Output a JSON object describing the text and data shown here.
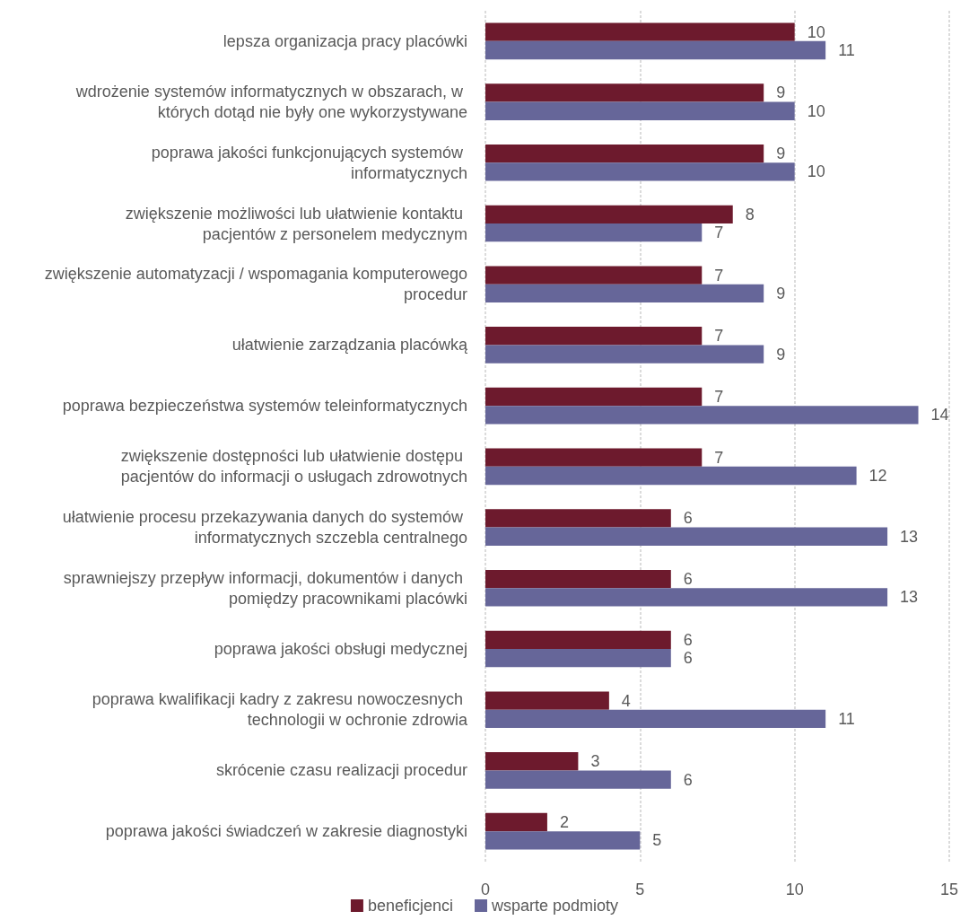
{
  "chart_data": {
    "type": "bar",
    "orientation": "horizontal",
    "categories": [
      "lepsza organizacja pracy placówki",
      "wdrożenie systemów informatycznych w obszarach, w których dotąd nie były one wykorzystywane",
      "poprawa jakości funkcjonujących systemów informatycznych",
      "zwiększenie możliwości lub ułatwienie kontaktu pacjentów z personelem medycznym",
      "zwiększenie automatyzacji / wspomagania komputerowego procedur",
      "ułatwienie zarządzania placówką",
      "poprawa bezpieczeństwa systemów teleinformatycznych",
      "zwiększenie dostępności lub ułatwienie dostępu pacjentów do informacji o usługach zdrowotnych",
      "ułatwienie procesu przekazywania danych do systemów informatycznych szczebla centralnego",
      "sprawniejszy przepływ informacji, dokumentów i danych pomiędzy pracownikami placówki",
      "poprawa jakości obsługi medycznej",
      "poprawa kwalifikacji kadry z zakresu nowoczesnych technologii w ochronie zdrowia",
      "skrócenie czasu realizacji procedur",
      "poprawa jakości świadczeń w zakresie diagnostyki"
    ],
    "series": [
      {
        "name": "beneficjenci",
        "color": "#6d1a2d",
        "values": [
          10,
          9,
          9,
          8,
          7,
          7,
          7,
          7,
          6,
          6,
          6,
          4,
          3,
          2
        ]
      },
      {
        "name": "wsparte podmioty",
        "color": "#666699",
        "values": [
          11,
          10,
          10,
          7,
          9,
          9,
          14,
          12,
          13,
          13,
          6,
          11,
          6,
          5
        ]
      }
    ],
    "xlim": [
      0,
      15
    ],
    "xticks": [
      0,
      5,
      10,
      15
    ],
    "grid": "x",
    "legend": "bottom",
    "data_labels": true
  }
}
